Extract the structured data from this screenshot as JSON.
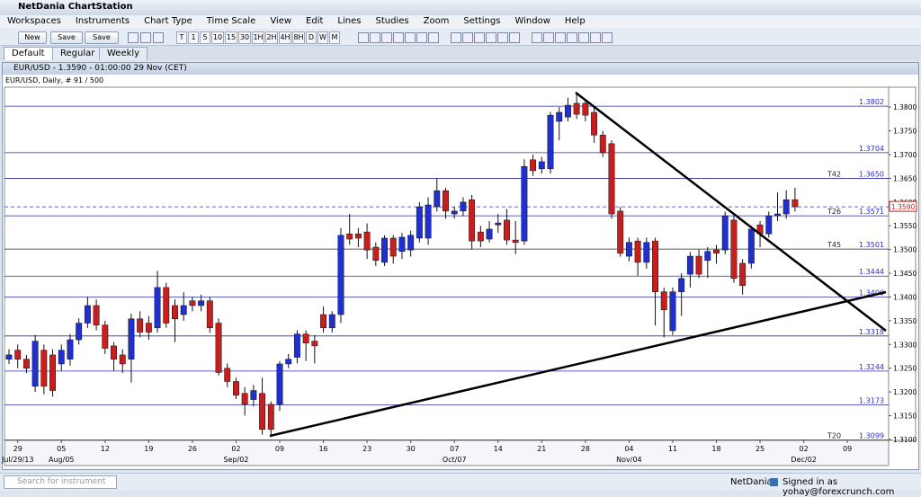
{
  "app_title": "NetDania ChartStation",
  "menu": [
    "Workspaces",
    "Instruments",
    "Chart Type",
    "Time Scale",
    "View",
    "Edit",
    "Lines",
    "Studies",
    "Zoom",
    "Settings",
    "Window",
    "Help"
  ],
  "file_buttons": [
    "New",
    "Save",
    "Save as..."
  ],
  "timescale_buttons": [
    "T",
    "1",
    "5",
    "10",
    "15",
    "30",
    "1H",
    "2H",
    "4H",
    "8H",
    "D",
    "W",
    "M"
  ],
  "tabs": [
    "Default",
    "Regular",
    "Weekly"
  ],
  "window_title": "EUR/USD - 1.3590 - 01:00:00  29 Nov (CET)",
  "status": {
    "search_placeholder": "Search for instrument",
    "brand": "NetDania",
    "signed_in": "Signed in as yohay@forexcrunch.com"
  },
  "chart_data": {
    "type": "candlestick",
    "title": "EUR/USD, Daily, # 91 / 500",
    "up_color": "#1f2fd0",
    "down_color": "#c81e1e",
    "ylim": [
      1.3098,
      1.3842
    ],
    "yticks": [
      {
        "value": 1.31,
        "label": "1.3100"
      },
      {
        "value": 1.315,
        "label": "1.3150"
      },
      {
        "value": 1.32,
        "label": "1.3200"
      },
      {
        "value": 1.325,
        "label": "1.3250"
      },
      {
        "value": 1.33,
        "label": "1.3300"
      },
      {
        "value": 1.335,
        "label": "1.3350"
      },
      {
        "value": 1.34,
        "label": "1.3400"
      },
      {
        "value": 1.345,
        "label": "1.3450"
      },
      {
        "value": 1.35,
        "label": "1.3500"
      },
      {
        "value": 1.355,
        "label": "1.3550"
      },
      {
        "value": 1.36,
        "label": "1.3600"
      },
      {
        "value": 1.365,
        "label": "1.3650"
      },
      {
        "value": 1.37,
        "label": "1.3700"
      },
      {
        "value": 1.375,
        "label": "1.3750"
      },
      {
        "value": 1.38,
        "label": "1.3800"
      }
    ],
    "grid": false,
    "xtick_labels": [
      "29",
      "05",
      "12",
      "19",
      "26",
      "02",
      "09",
      "16",
      "23",
      "30",
      "07",
      "14",
      "21",
      "28",
      "04",
      "11",
      "18",
      "25",
      "02",
      "09"
    ],
    "xtick_sublabels": [
      "Jul/29/13",
      "Aug/05",
      null,
      null,
      null,
      "Sep/02",
      null,
      null,
      null,
      null,
      "Oct/07",
      null,
      null,
      null,
      "Nov/04",
      null,
      null,
      null,
      "Dec/02",
      null
    ],
    "levels": [
      {
        "value": 1.3802,
        "label": "1.3802",
        "tag": null
      },
      {
        "value": 1.3704,
        "label": "1.3704",
        "tag": null
      },
      {
        "value": 1.365,
        "label": "1.3650",
        "tag": "T42"
      },
      {
        "value": 1.3571,
        "label": "1.3571",
        "tag": "T26"
      },
      {
        "value": 1.3501,
        "label": "1.3501",
        "tag": "T45"
      },
      {
        "value": 1.3444,
        "label": "1.3444",
        "tag": null
      },
      {
        "value": 1.34,
        "label": "1.3400",
        "tag": null
      },
      {
        "value": 1.3318,
        "label": "1.3318",
        "tag": null
      },
      {
        "value": 1.3244,
        "label": "1.3244",
        "tag": null
      },
      {
        "value": 1.3173,
        "label": "1.3173",
        "tag": null
      },
      {
        "value": 1.3099,
        "label": "1.3099",
        "tag": "T20"
      }
    ],
    "last_price": {
      "value": 1.359,
      "label": "1.3590"
    },
    "open": [
      1.3269,
      1.3288,
      1.3269,
      1.3212,
      1.3288,
      1.3278,
      1.3259,
      1.3269,
      1.331,
      1.3345,
      1.3382,
      1.3341,
      1.3297,
      1.3278,
      1.3269,
      1.3354,
      1.3345,
      1.3335,
      1.342,
      1.3382,
      1.3363,
      1.3392,
      1.3382,
      1.3392,
      1.3345,
      1.325,
      1.3222,
      1.3197,
      1.3184,
      1.3197,
      1.3174,
      1.3174,
      1.3259,
      1.3273,
      1.3322,
      1.3307,
      1.3363,
      1.3335,
      1.3363,
      1.3533,
      1.3533,
      1.3537,
      1.3505,
      1.3473,
      1.3524,
      1.3496,
      1.3499,
      1.3524,
      1.3524,
      1.359,
      1.3624,
      1.3575,
      1.3581,
      1.3605,
      1.3537,
      1.3522,
      1.3552,
      1.3562,
      1.352,
      1.3518,
      1.3689,
      1.367,
      1.367,
      1.377,
      1.3779,
      1.3808,
      1.3808,
      1.3789,
      1.3741,
      1.3723,
      1.3581,
      1.3486,
      1.3518,
      1.3473,
      1.3518,
      1.3411,
      1.3329,
      1.3411,
      1.3448,
      1.3486,
      1.3477,
      1.3499,
      1.3499,
      1.3562,
      1.3471,
      1.3471,
      1.3552,
      1.3533,
      1.3571,
      1.3575,
      1.3605
    ],
    "high": [
      1.329,
      1.33,
      1.3278,
      1.332,
      1.33,
      1.329,
      1.33,
      1.3322,
      1.3355,
      1.34,
      1.3395,
      1.335,
      1.3305,
      1.329,
      1.3365,
      1.337,
      1.336,
      1.3455,
      1.343,
      1.3395,
      1.341,
      1.34,
      1.3405,
      1.34,
      1.3355,
      1.326,
      1.323,
      1.321,
      1.3215,
      1.323,
      1.318,
      1.3265,
      1.328,
      1.333,
      1.333,
      1.332,
      1.338,
      1.337,
      1.3545,
      1.3575,
      1.3545,
      1.3555,
      1.3515,
      1.353,
      1.353,
      1.3535,
      1.354,
      1.36,
      1.361,
      1.365,
      1.363,
      1.359,
      1.361,
      1.3615,
      1.355,
      1.356,
      1.3575,
      1.3585,
      1.356,
      1.369,
      1.37,
      1.3695,
      1.379,
      1.38,
      1.382,
      1.3832,
      1.3815,
      1.38,
      1.375,
      1.373,
      1.359,
      1.3525,
      1.3525,
      1.3525,
      1.3525,
      1.342,
      1.342,
      1.345,
      1.3495,
      1.35,
      1.3505,
      1.351,
      1.358,
      1.357,
      1.348,
      1.355,
      1.356,
      1.358,
      1.362,
      1.3625,
      1.363
    ],
    "low": [
      1.3259,
      1.325,
      1.324,
      1.32,
      1.3195,
      1.319,
      1.3245,
      1.3255,
      1.33,
      1.3335,
      1.333,
      1.328,
      1.3245,
      1.324,
      1.322,
      1.3315,
      1.331,
      1.3325,
      1.3335,
      1.3305,
      1.335,
      1.337,
      1.337,
      1.3325,
      1.3235,
      1.321,
      1.3185,
      1.315,
      1.317,
      1.311,
      1.3105,
      1.316,
      1.325,
      1.326,
      1.3265,
      1.326,
      1.3325,
      1.3325,
      1.3345,
      1.351,
      1.3505,
      1.348,
      1.3465,
      1.3465,
      1.347,
      1.348,
      1.3485,
      1.3515,
      1.351,
      1.358,
      1.3565,
      1.3565,
      1.357,
      1.35,
      1.3505,
      1.3515,
      1.3535,
      1.351,
      1.349,
      1.351,
      1.3655,
      1.366,
      1.366,
      1.373,
      1.377,
      1.3775,
      1.377,
      1.3725,
      1.3695,
      1.3565,
      1.3485,
      1.3475,
      1.3445,
      1.346,
      1.334,
      1.3315,
      1.332,
      1.336,
      1.342,
      1.344,
      1.344,
      1.347,
      1.349,
      1.343,
      1.3405,
      1.346,
      1.3505,
      1.3525,
      1.356,
      1.3565,
      1.358
    ],
    "close": [
      1.3278,
      1.3269,
      1.325,
      1.3307,
      1.3212,
      1.3203,
      1.3288,
      1.331,
      1.3345,
      1.3382,
      1.3341,
      1.3292,
      1.3269,
      1.3259,
      1.3354,
      1.3326,
      1.3326,
      1.342,
      1.3345,
      1.3354,
      1.3382,
      1.3382,
      1.3392,
      1.3335,
      1.3241,
      1.3222,
      1.3193,
      1.3174,
      1.3203,
      1.3121,
      1.3121,
      1.3259,
      1.3269,
      1.3322,
      1.3303,
      1.3297,
      1.3335,
      1.3363,
      1.353,
      1.3522,
      1.3524,
      1.3499,
      1.3477,
      1.3524,
      1.3486,
      1.3526,
      1.353,
      1.359,
      1.3594,
      1.3624,
      1.3581,
      1.3581,
      1.36,
      1.3518,
      1.3518,
      1.3543,
      1.3556,
      1.352,
      1.3515,
      1.3675,
      1.3666,
      1.3685,
      1.3783,
      1.3789,
      1.3804,
      1.3785,
      1.3783,
      1.3741,
      1.3704,
      1.3575,
      1.3492,
      1.3515,
      1.3473,
      1.3515,
      1.3411,
      1.3373,
      1.3411,
      1.3439,
      1.3486,
      1.3448,
      1.3496,
      1.3492,
      1.3571,
      1.3439,
      1.3424,
      1.3543,
      1.3533,
      1.3571,
      1.3575,
      1.3605,
      1.359
    ]
  }
}
